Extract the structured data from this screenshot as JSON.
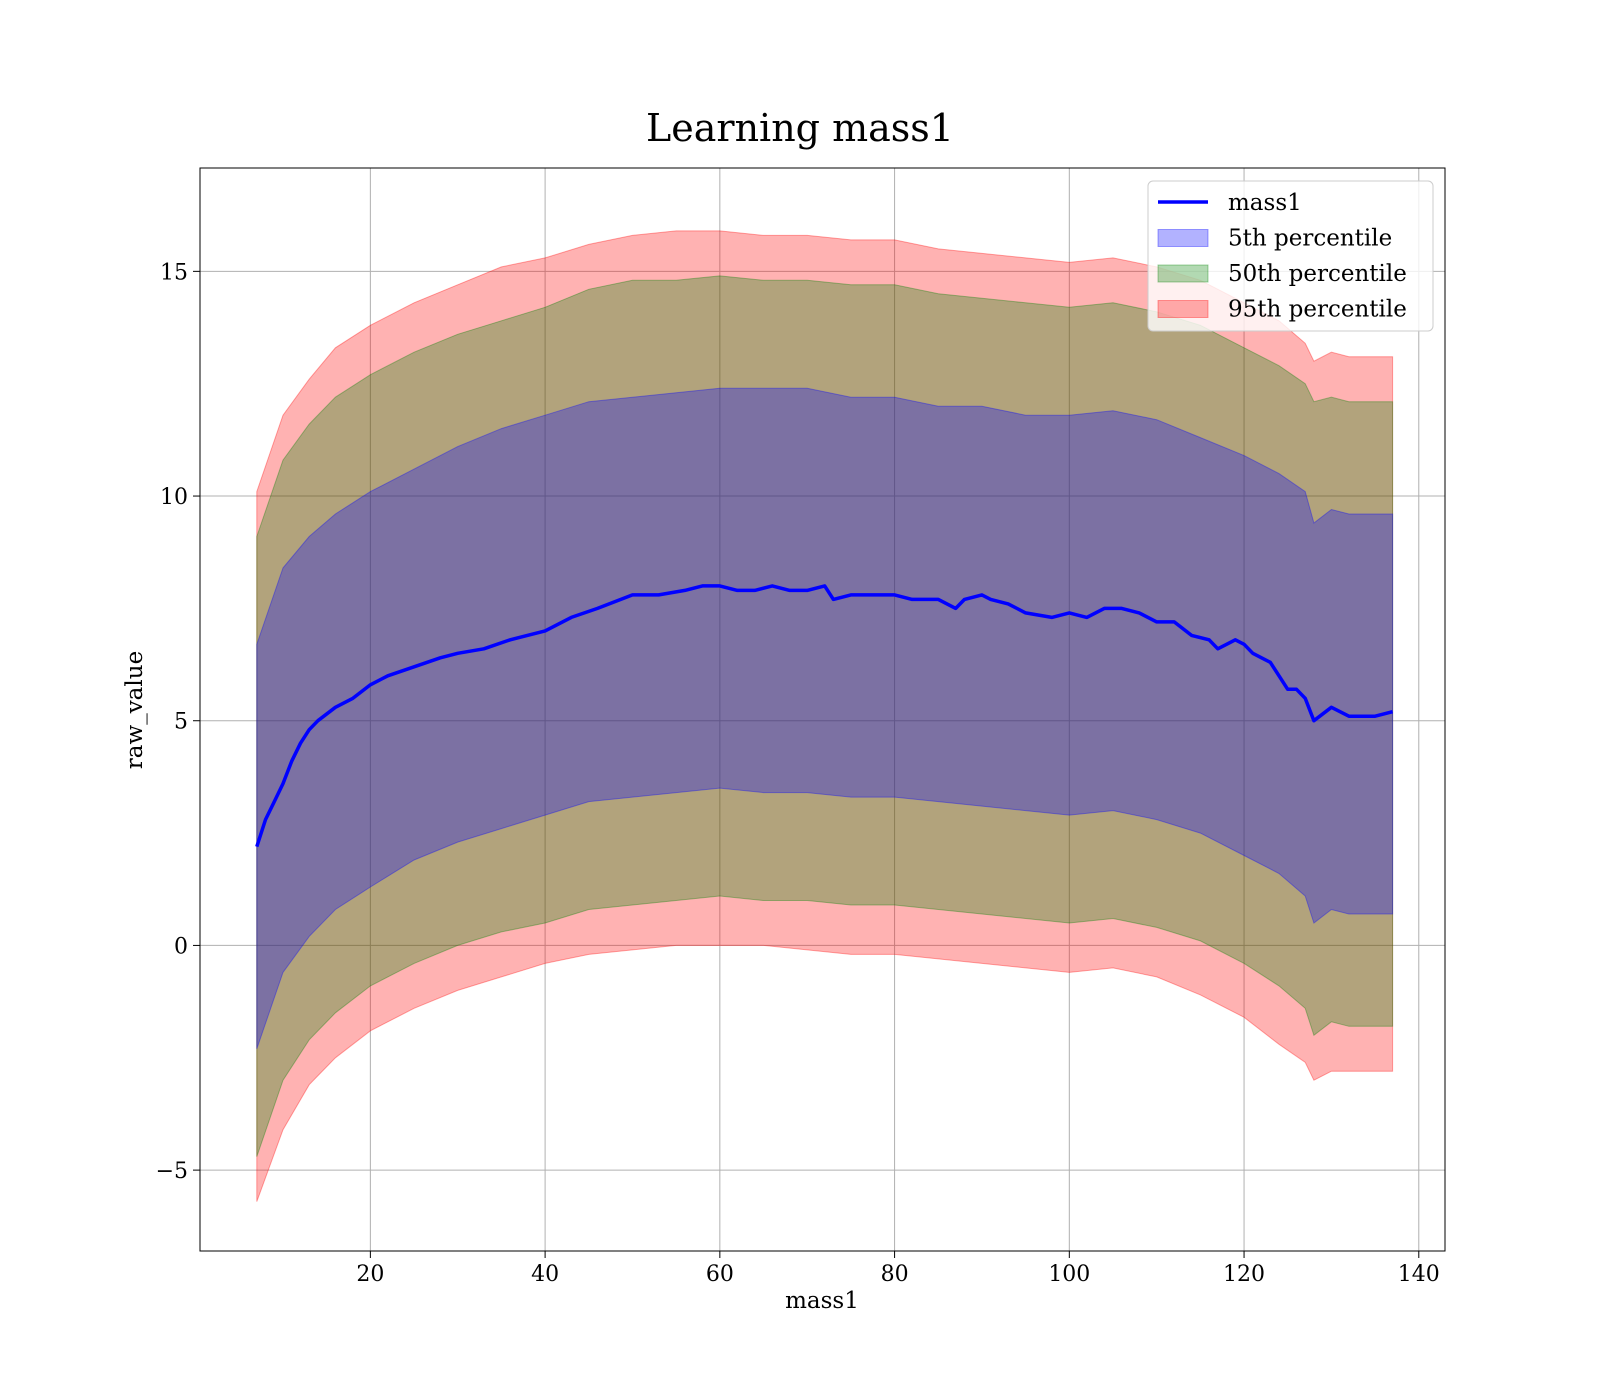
{
  "chart_data": {
    "type": "line",
    "title": "Learning mass1",
    "xlabel": "mass1",
    "ylabel": "raw_value",
    "xlim": [
      0.5,
      143
    ],
    "ylim": [
      -6.8,
      17.3
    ],
    "xticks": [
      20,
      40,
      60,
      80,
      100,
      120,
      140
    ],
    "yticks": [
      -5,
      0,
      5,
      10,
      15
    ],
    "ytick_labels": [
      "−5",
      "0",
      "5",
      "10",
      "15"
    ],
    "grid": true,
    "legend_position": "top-right",
    "series": [
      {
        "name": "mass1",
        "kind": "line",
        "color": "#0000ff",
        "x": [
          7,
          8,
          9,
          10,
          11,
          12,
          13,
          14,
          16,
          18,
          20,
          22,
          25,
          28,
          30,
          33,
          36,
          40,
          43,
          46,
          50,
          53,
          56,
          58,
          60,
          62,
          64,
          66,
          68,
          70,
          72,
          73,
          75,
          78,
          80,
          82,
          85,
          87,
          88,
          90,
          91,
          93,
          95,
          98,
          100,
          102,
          104,
          106,
          108,
          110,
          112,
          114,
          116,
          117,
          118,
          119,
          120,
          121,
          122,
          123,
          124,
          125,
          126,
          127,
          128,
          130,
          132,
          135,
          137
        ],
        "y": [
          2.2,
          2.8,
          3.2,
          3.6,
          4.1,
          4.5,
          4.8,
          5.0,
          5.3,
          5.5,
          5.8,
          6.0,
          6.2,
          6.4,
          6.5,
          6.6,
          6.8,
          7.0,
          7.3,
          7.5,
          7.8,
          7.8,
          7.9,
          8.0,
          8.0,
          7.9,
          7.9,
          8.0,
          7.9,
          7.9,
          8.0,
          7.7,
          7.8,
          7.8,
          7.8,
          7.7,
          7.7,
          7.5,
          7.7,
          7.8,
          7.7,
          7.6,
          7.4,
          7.3,
          7.4,
          7.3,
          7.5,
          7.5,
          7.4,
          7.2,
          7.2,
          6.9,
          6.8,
          6.6,
          6.7,
          6.8,
          6.7,
          6.5,
          6.4,
          6.3,
          6.0,
          5.7,
          5.7,
          5.5,
          5.0,
          5.3,
          5.1,
          5.1,
          5.2
        ]
      },
      {
        "name": "5th percentile",
        "kind": "band",
        "color": "#0000ff",
        "x": [
          7,
          10,
          13,
          16,
          20,
          25,
          30,
          35,
          40,
          45,
          50,
          55,
          60,
          65,
          70,
          75,
          80,
          85,
          90,
          95,
          100,
          105,
          110,
          115,
          120,
          124,
          127,
          128,
          130,
          132,
          137
        ],
        "lower": [
          -2.3,
          -0.6,
          0.2,
          0.8,
          1.3,
          1.9,
          2.3,
          2.6,
          2.9,
          3.2,
          3.3,
          3.4,
          3.5,
          3.4,
          3.4,
          3.3,
          3.3,
          3.2,
          3.1,
          3.0,
          2.9,
          3.0,
          2.8,
          2.5,
          2.0,
          1.6,
          1.1,
          0.5,
          0.8,
          0.7,
          0.7
        ],
        "upper": [
          6.7,
          8.4,
          9.1,
          9.6,
          10.1,
          10.6,
          11.1,
          11.5,
          11.8,
          12.1,
          12.2,
          12.3,
          12.4,
          12.4,
          12.4,
          12.2,
          12.2,
          12.0,
          12.0,
          11.8,
          11.8,
          11.9,
          11.7,
          11.3,
          10.9,
          10.5,
          10.1,
          9.4,
          9.7,
          9.6,
          9.6
        ]
      },
      {
        "name": "50th percentile",
        "kind": "band",
        "color": "#008000",
        "x": [
          7,
          10,
          13,
          16,
          20,
          25,
          30,
          35,
          40,
          45,
          50,
          55,
          60,
          65,
          70,
          75,
          80,
          85,
          90,
          95,
          100,
          105,
          110,
          115,
          120,
          124,
          127,
          128,
          130,
          132,
          137
        ],
        "lower": [
          -4.7,
          -3.0,
          -2.1,
          -1.5,
          -0.9,
          -0.4,
          0.0,
          0.3,
          0.5,
          0.8,
          0.9,
          1.0,
          1.1,
          1.0,
          1.0,
          0.9,
          0.9,
          0.8,
          0.7,
          0.6,
          0.5,
          0.6,
          0.4,
          0.1,
          -0.4,
          -0.9,
          -1.4,
          -2.0,
          -1.7,
          -1.8,
          -1.8
        ],
        "upper": [
          9.1,
          10.8,
          11.6,
          12.2,
          12.7,
          13.2,
          13.6,
          13.9,
          14.2,
          14.6,
          14.8,
          14.8,
          14.9,
          14.8,
          14.8,
          14.7,
          14.7,
          14.5,
          14.4,
          14.3,
          14.2,
          14.3,
          14.1,
          13.8,
          13.3,
          12.9,
          12.5,
          12.1,
          12.2,
          12.1,
          12.1
        ]
      },
      {
        "name": "95th percentile",
        "kind": "band",
        "color": "#ff0000",
        "x": [
          7,
          10,
          13,
          16,
          20,
          25,
          30,
          35,
          40,
          45,
          50,
          55,
          60,
          65,
          70,
          75,
          80,
          85,
          90,
          95,
          100,
          105,
          110,
          115,
          120,
          124,
          127,
          128,
          130,
          132,
          137
        ],
        "lower": [
          -5.7,
          -4.1,
          -3.1,
          -2.5,
          -1.9,
          -1.4,
          -1.0,
          -0.7,
          -0.4,
          -0.2,
          -0.1,
          0.0,
          0.0,
          0.0,
          -0.1,
          -0.2,
          -0.2,
          -0.3,
          -0.4,
          -0.5,
          -0.6,
          -0.5,
          -0.7,
          -1.1,
          -1.6,
          -2.2,
          -2.6,
          -3.0,
          -2.8,
          -2.8,
          -2.8
        ],
        "upper": [
          10.1,
          11.8,
          12.6,
          13.3,
          13.8,
          14.3,
          14.7,
          15.1,
          15.3,
          15.6,
          15.8,
          15.9,
          15.9,
          15.8,
          15.8,
          15.7,
          15.7,
          15.5,
          15.4,
          15.3,
          15.2,
          15.3,
          15.1,
          14.8,
          14.3,
          13.9,
          13.4,
          13.0,
          13.2,
          13.1,
          13.1
        ]
      }
    ]
  }
}
